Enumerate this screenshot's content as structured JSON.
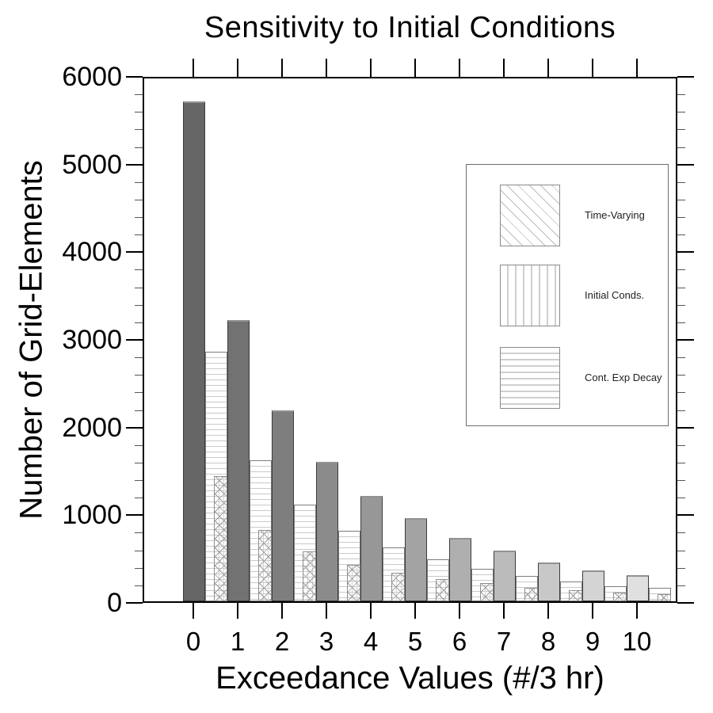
{
  "title": "Sensitivity to Initial Conditions",
  "chart_data": {
    "type": "bar",
    "title": "Sensitivity to Initial Conditions",
    "xlabel": "Exceedance Values (#/3 hr)",
    "ylabel": "Number of Grid-Elements",
    "categories": [
      0,
      1,
      2,
      3,
      4,
      5,
      6,
      7,
      8,
      9,
      10
    ],
    "xtick_labels": [
      "0",
      "1",
      "2",
      "3",
      "4",
      "5",
      "6",
      "7",
      "8",
      "9",
      "10"
    ],
    "ylim": [
      0,
      6000
    ],
    "ytick_major": 1000,
    "ytick_minor": 200,
    "ytick_labels": [
      "0",
      "1000",
      "2000",
      "3000",
      "4000",
      "5000",
      "6000"
    ],
    "grid": false,
    "legend_position": "upper right inside frame",
    "series": [
      {
        "key": "solid_gray_unlabeled",
        "legend_label": null,
        "pattern": "solid",
        "values": [
          5700,
          3210,
          2180,
          1590,
          1200,
          945,
          720,
          575,
          440,
          350,
          295
        ]
      },
      {
        "key": "cont_exp_decay",
        "legend_label": "Cont. Exp Decay",
        "pattern": "horizontal-lines",
        "values": [
          2850,
          1610,
          1100,
          805,
          615,
          480,
          370,
          290,
          230,
          175,
          155
        ]
      },
      {
        "key": "time_varying",
        "legend_label": "Time-Varying",
        "pattern": "diagonal-lines",
        "values": [
          1430,
          810,
          570,
          415,
          325,
          250,
          205,
          150,
          125,
          95,
          80
        ]
      },
      {
        "key": "initial_conds",
        "legend_label": "Initial Conds.",
        "pattern": "vertical-lines",
        "values": [
          1430,
          810,
          570,
          415,
          325,
          250,
          205,
          150,
          125,
          95,
          80
        ]
      }
    ],
    "note_visible_rendering": "time_varying and initial_conds bars coincide, appearing as one cross-hatched bar"
  },
  "legend": {
    "items": [
      {
        "label": "Time-Varying",
        "pattern": "diagonal-lines"
      },
      {
        "label": "Initial Conds.",
        "pattern": "vertical-lines"
      },
      {
        "label": "Cont. Exp Decay",
        "pattern": "horizontal-lines"
      }
    ]
  },
  "colors": {
    "frame": "#000000",
    "solid_bar_ramp": [
      "#666666",
      "#727272",
      "#7e7e7e",
      "#8b8b8b",
      "#979797",
      "#a3a3a3",
      "#afafaf",
      "#bbbbbb",
      "#c8c8c8",
      "#d4d4d4",
      "#e0e0e0"
    ],
    "hatch_line": "#c9c9c9",
    "background": "#ffffff"
  }
}
